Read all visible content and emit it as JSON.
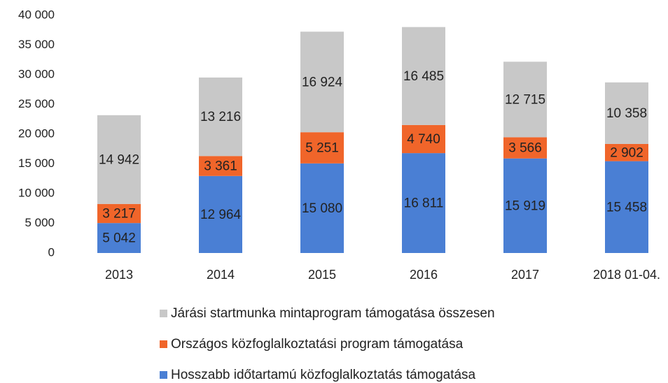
{
  "chart_data": {
    "type": "stacked_bar",
    "categories": [
      "2013",
      "2014",
      "2015",
      "2016",
      "2017",
      "2018 01-04."
    ],
    "series": [
      {
        "name": "Hosszabb időtartamú közfoglalkoztatás támogatása",
        "color": "#4a7fd4",
        "values": [
          5042,
          12964,
          15080,
          16811,
          15919,
          15458
        ],
        "value_labels": [
          "5 042",
          "12 964",
          "15 080",
          "16 811",
          "15 919",
          "15 458"
        ]
      },
      {
        "name": "Országos közfoglalkoztatási program támogatása",
        "color": "#f0652a",
        "values": [
          3217,
          3361,
          5251,
          4740,
          3566,
          2902
        ],
        "value_labels": [
          "3 217",
          "3 361",
          "5 251",
          "4 740",
          "3 566",
          "2 902"
        ]
      },
      {
        "name": "Járási startmunka mintaprogram támogatása összesen",
        "color": "#c8c8c8",
        "values": [
          14942,
          13216,
          16924,
          16485,
          12715,
          10358
        ],
        "value_labels": [
          "14 942",
          "13 216",
          "16 924",
          "16 485",
          "12 715",
          "10 358"
        ]
      }
    ],
    "ylim": [
      0,
      40000
    ],
    "yticks": [
      0,
      {
        "value": 5000,
        "label": "5 000"
      },
      {
        "value": 10000,
        "label": "10 000"
      },
      {
        "value": 15000,
        "label": "15 000"
      },
      {
        "value": 20000,
        "label": "20 000"
      },
      {
        "value": 25000,
        "label": "25 000"
      },
      {
        "value": 30000,
        "label": "30 000"
      },
      {
        "value": 35000,
        "label": "35 000"
      },
      {
        "value": 40000,
        "label": "40 000"
      }
    ],
    "grid": false
  }
}
